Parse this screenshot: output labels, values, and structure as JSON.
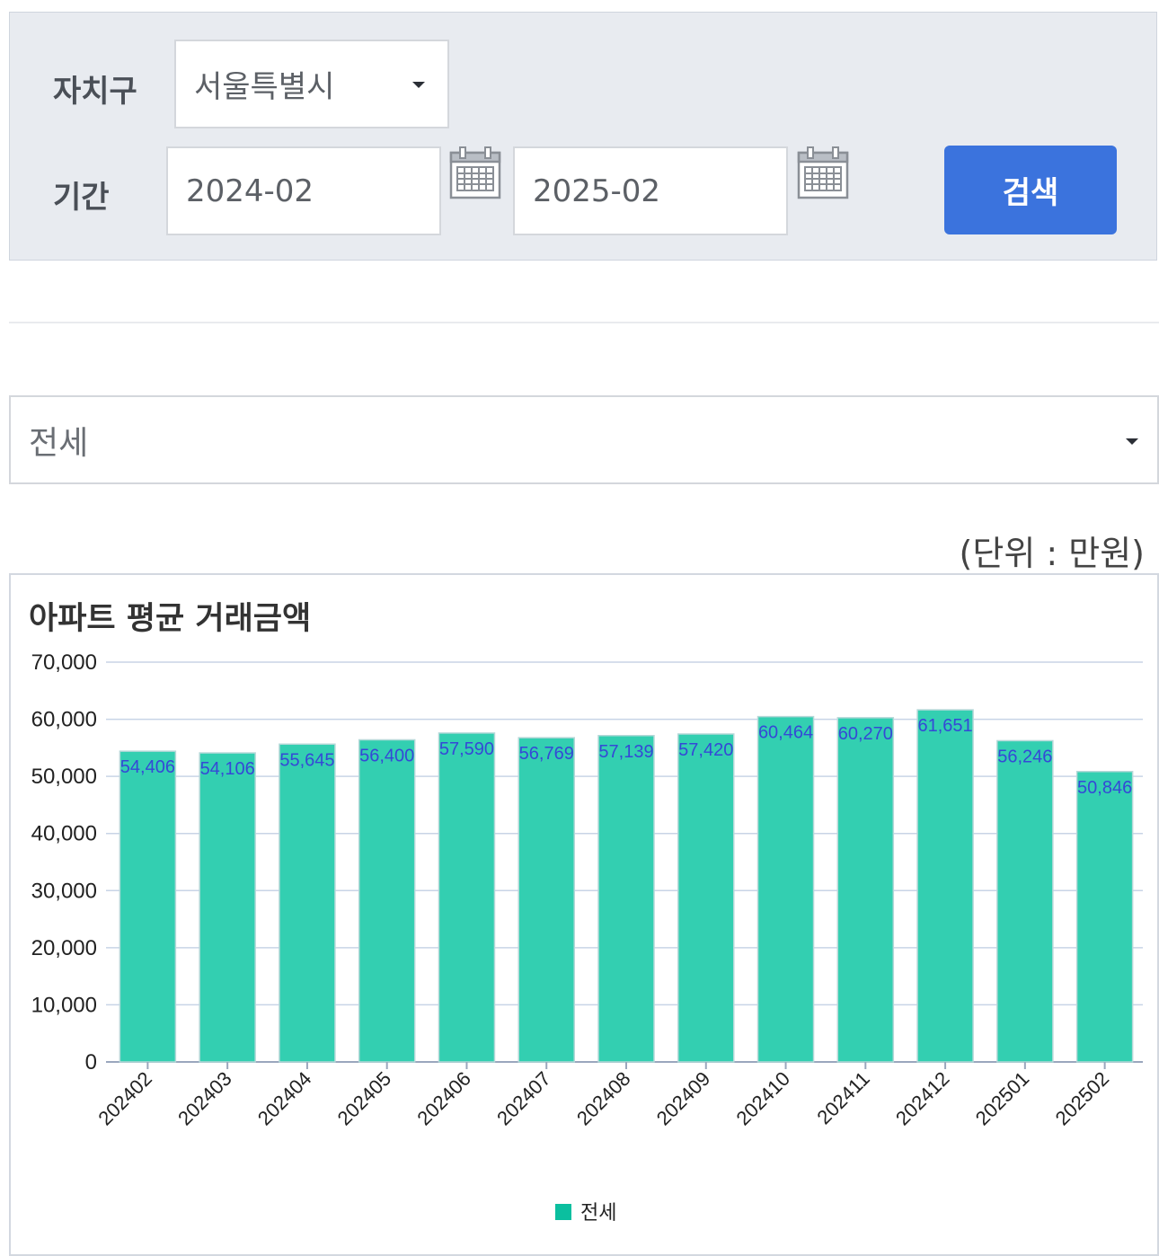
{
  "filter": {
    "district_label": "자치구",
    "district_value": "서울특별시",
    "period_label": "기간",
    "start_value": "2024-02",
    "end_value": "2025-02",
    "search_label": "검색"
  },
  "type_select": {
    "value": "전세"
  },
  "unit_label": "(단위 : 만원)",
  "colors": {
    "bar": "#33cfb1",
    "bar_stroke": "#b5d8d8",
    "label": "#3548d6",
    "accent": "#3b73dd",
    "grid": "#c8d4e6"
  },
  "chart_data": {
    "type": "bar",
    "title": "아파트 평균 거래금액",
    "categories": [
      "202402",
      "202403",
      "202404",
      "202405",
      "202406",
      "202407",
      "202408",
      "202409",
      "202410",
      "202411",
      "202412",
      "202501",
      "202502"
    ],
    "series": [
      {
        "name": "전세",
        "values": [
          54406,
          54106,
          55645,
          56400,
          57590,
          56769,
          57139,
          57420,
          60464,
          60270,
          61651,
          56246,
          50846
        ]
      }
    ],
    "data_labels": [
      "54,406",
      "54,106",
      "55,645",
      "56,400",
      "57,590",
      "56,769",
      "57,139",
      "57,420",
      "60,464",
      "60,270",
      "61,651",
      "56,246",
      "50,846"
    ],
    "y_ticks": [
      "0",
      "10,000",
      "20,000",
      "30,000",
      "40,000",
      "50,000",
      "60,000",
      "70,000"
    ],
    "ylim": [
      0,
      70000
    ],
    "grid": true,
    "legend": "bottom-center"
  }
}
